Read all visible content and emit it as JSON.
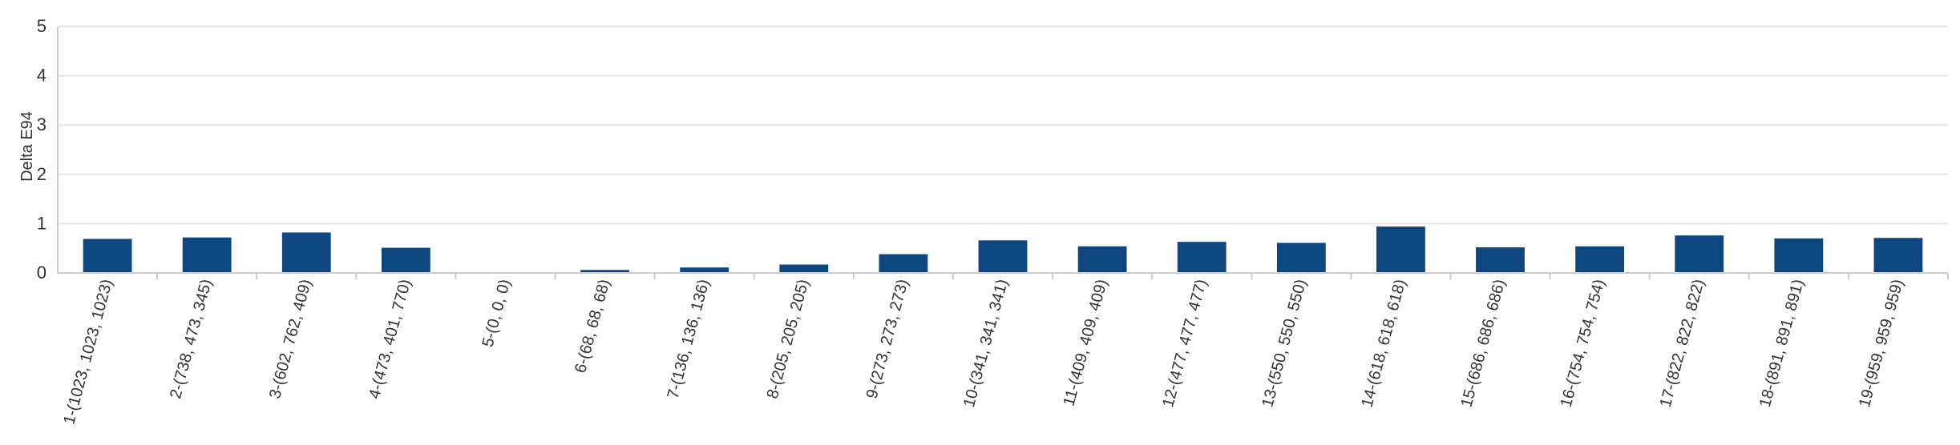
{
  "chart_data": {
    "type": "bar",
    "title": "",
    "xlabel": "",
    "ylabel": "Delta E94",
    "ylim": [
      0,
      5
    ],
    "yticks": [
      0,
      1,
      2,
      3,
      4,
      5
    ],
    "grid": true,
    "legend": "none",
    "bar_color": "#0e4680",
    "categories": [
      "1-(1023, 1023, 1023)",
      "2-(738, 473, 345)",
      "3-(602, 762, 409)",
      "4-(473, 401, 770)",
      "5-(0, 0, 0)",
      "6-(68, 68, 68)",
      "7-(136, 136, 136)",
      "8-(205, 205, 205)",
      "9-(273, 273, 273)",
      "10-(341, 341, 341)",
      "11-(409, 409, 409)",
      "12-(477, 477, 477)",
      "13-(550, 550, 550)",
      "14-(618, 618, 618)",
      "15-(686, 686, 686)",
      "16-(754, 754, 754)",
      "17-(822, 822, 822)",
      "18-(891, 891, 891)",
      "19-(959, 959, 959)"
    ],
    "values": [
      0.69,
      0.72,
      0.82,
      0.51,
      0.0,
      0.06,
      0.11,
      0.17,
      0.38,
      0.66,
      0.54,
      0.63,
      0.61,
      0.94,
      0.52,
      0.54,
      0.76,
      0.7,
      0.71
    ]
  }
}
